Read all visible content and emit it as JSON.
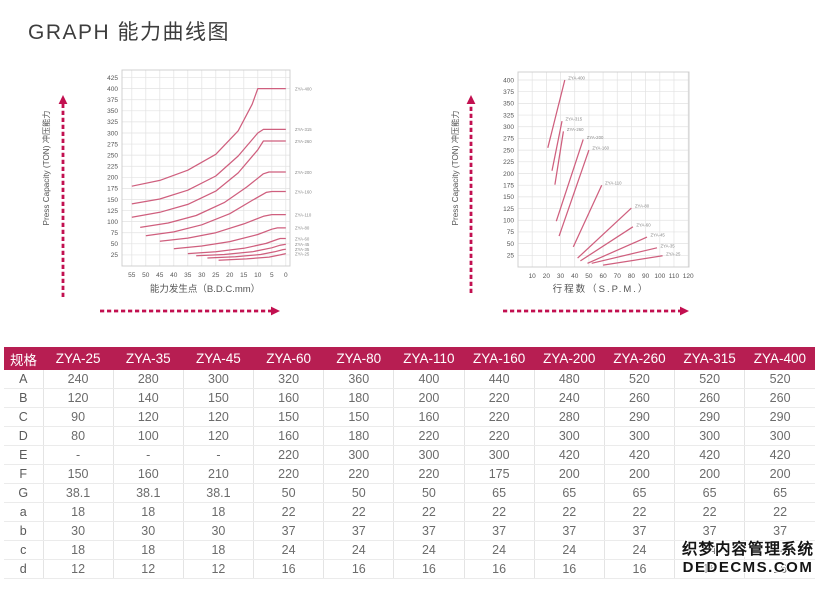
{
  "page": {
    "title": "GRAPH 能力曲线图"
  },
  "watermark": {
    "line1": "织梦内容管理系统",
    "line2": "DEDECMS.COM"
  },
  "colors": {
    "accent": "#b71e52",
    "curve": "#cf5f7e",
    "arrow": "#c21050",
    "grid": "#e2e2e2",
    "plot_border": "#cccccc",
    "tick_text": "#555555",
    "series_label": "#888888"
  },
  "chart_data": [
    {
      "type": "line",
      "ylabel": "Press Capacity (TON) 冲压能力",
      "xlabel": "能力发生点（B.D.C.mm）",
      "x_reversed": true,
      "xlim": [
        0,
        55
      ],
      "ylim": [
        0,
        440
      ],
      "xticks": [
        55,
        50,
        45,
        40,
        35,
        30,
        25,
        20,
        15,
        10,
        5,
        0
      ],
      "yticks": [
        425,
        400,
        375,
        350,
        325,
        300,
        275,
        250,
        225,
        200,
        175,
        150,
        125,
        100,
        75,
        50,
        25
      ],
      "grid": true,
      "legend_position": "right-of-curves",
      "series": [
        {
          "name": "ZYA-400",
          "points": [
            [
              55,
              180
            ],
            [
              45,
              193
            ],
            [
              35,
              216
            ],
            [
              25,
              252
            ],
            [
              17,
              305
            ],
            [
              12,
              365
            ],
            [
              10,
              400
            ],
            [
              0,
              400
            ]
          ]
        },
        {
          "name": "ZYA-315",
          "points": [
            [
              55,
              140
            ],
            [
              45,
              151
            ],
            [
              35,
              171
            ],
            [
              25,
              203
            ],
            [
              17,
              248
            ],
            [
              10,
              300
            ],
            [
              8,
              308
            ],
            [
              0,
              308
            ]
          ]
        },
        {
          "name": "ZYA-260",
          "points": [
            [
              55,
              110
            ],
            [
              45,
              121
            ],
            [
              35,
              139
            ],
            [
              25,
              169
            ],
            [
              17,
              210
            ],
            [
              10,
              262
            ],
            [
              8,
              282
            ],
            [
              0,
              282
            ]
          ]
        },
        {
          "name": "ZYA-200",
          "points": [
            [
              52,
              87
            ],
            [
              42,
              97
            ],
            [
              32,
              114
            ],
            [
              22,
              143
            ],
            [
              14,
              178
            ],
            [
              8,
              208
            ],
            [
              6,
              212
            ],
            [
              0,
              212
            ]
          ]
        },
        {
          "name": "ZYA-160",
          "points": [
            [
              50,
              68
            ],
            [
              40,
              77
            ],
            [
              30,
              93
            ],
            [
              20,
              118
            ],
            [
              12,
              148
            ],
            [
              7,
              166
            ],
            [
              5,
              168
            ],
            [
              0,
              168
            ]
          ]
        },
        {
          "name": "ZYA-110",
          "points": [
            [
              45,
              56
            ],
            [
              35,
              63
            ],
            [
              25,
              75
            ],
            [
              15,
              95
            ],
            [
              8,
              112
            ],
            [
              5,
              116
            ],
            [
              0,
              116
            ]
          ]
        },
        {
          "name": "ZYA-80",
          "points": [
            [
              40,
              39
            ],
            [
              30,
              45
            ],
            [
              20,
              55
            ],
            [
              10,
              71
            ],
            [
              5,
              83
            ],
            [
              3,
              86
            ],
            [
              0,
              86
            ]
          ]
        },
        {
          "name": "ZYA-60",
          "points": [
            [
              35,
              28
            ],
            [
              25,
              32
            ],
            [
              15,
              40
            ],
            [
              7,
              51
            ],
            [
              3,
              60
            ],
            [
              2,
              62
            ],
            [
              0,
              62
            ]
          ]
        },
        {
          "name": "ZYA-45",
          "points": [
            [
              32,
              23
            ],
            [
              22,
              26
            ],
            [
              12,
              32
            ],
            [
              5,
              41
            ],
            [
              2,
              47
            ],
            [
              0,
              49
            ]
          ]
        },
        {
          "name": "ZYA-35",
          "points": [
            [
              28,
              18
            ],
            [
              18,
              21
            ],
            [
              9,
              26
            ],
            [
              4,
              32
            ],
            [
              1,
              37
            ],
            [
              0,
              38
            ]
          ]
        },
        {
          "name": "ZYA-25",
          "points": [
            [
              24,
              13
            ],
            [
              14,
              16
            ],
            [
              6,
              20
            ],
            [
              2,
              25
            ],
            [
              0,
              28
            ]
          ]
        }
      ]
    },
    {
      "type": "line",
      "ylabel": "Press Capacity (TON) 冲压能力",
      "xlabel": "行程数（S.P.M.）",
      "x_reversed": false,
      "xlim": [
        0,
        120
      ],
      "ylim": [
        0,
        415
      ],
      "xticks": [
        10,
        20,
        30,
        40,
        50,
        60,
        70,
        80,
        90,
        100,
        110,
        120
      ],
      "yticks": [
        400,
        375,
        350,
        325,
        300,
        275,
        250,
        225,
        200,
        175,
        150,
        125,
        100,
        75,
        50,
        25
      ],
      "grid": true,
      "legend_position": "at-line-end",
      "series": [
        {
          "name": "ZYA-400",
          "points": [
            [
              21,
              255
            ],
            [
              33,
              400
            ]
          ]
        },
        {
          "name": "ZYA-315",
          "points": [
            [
              24,
              206
            ],
            [
              31,
              312
            ]
          ]
        },
        {
          "name": "ZYA-260",
          "points": [
            [
              26,
              176
            ],
            [
              32,
              290
            ]
          ]
        },
        {
          "name": "ZYA-200",
          "points": [
            [
              27,
              98
            ],
            [
              46,
              273
            ]
          ]
        },
        {
          "name": "ZYA-160",
          "points": [
            [
              29,
              66
            ],
            [
              50,
              250
            ]
          ]
        },
        {
          "name": "ZYA-110",
          "points": [
            [
              39,
              43
            ],
            [
              59,
              175
            ]
          ]
        },
        {
          "name": "ZYA-80",
          "points": [
            [
              42,
              19
            ],
            [
              80,
              126
            ]
          ]
        },
        {
          "name": "ZYA-60",
          "points": [
            [
              44,
              13
            ],
            [
              81,
              86
            ]
          ]
        },
        {
          "name": "ZYA-45",
          "points": [
            [
              49,
              8
            ],
            [
              91,
              64
            ]
          ]
        },
        {
          "name": "ZYA-35",
          "points": [
            [
              52,
              8
            ],
            [
              98,
              41
            ]
          ]
        },
        {
          "name": "ZYA-25",
          "points": [
            [
              60,
              4
            ],
            [
              102,
              24
            ]
          ]
        }
      ]
    }
  ],
  "table": {
    "corner": "规格",
    "columns": [
      "ZYA-25",
      "ZYA-35",
      "ZYA-45",
      "ZYA-60",
      "ZYA-80",
      "ZYA-110",
      "ZYA-160",
      "ZYA-200",
      "ZYA-260",
      "ZYA-315",
      "ZYA-400"
    ],
    "rows": [
      {
        "label": "A",
        "values": [
          "240",
          "280",
          "300",
          "320",
          "360",
          "400",
          "440",
          "480",
          "520",
          "520",
          "520"
        ]
      },
      {
        "label": "B",
        "values": [
          "120",
          "140",
          "150",
          "160",
          "180",
          "200",
          "220",
          "240",
          "260",
          "260",
          "260"
        ]
      },
      {
        "label": "C",
        "values": [
          "90",
          "120",
          "120",
          "150",
          "150",
          "160",
          "220",
          "280",
          "290",
          "290",
          "290"
        ]
      },
      {
        "label": "D",
        "values": [
          "80",
          "100",
          "120",
          "160",
          "180",
          "220",
          "220",
          "300",
          "300",
          "300",
          "300"
        ]
      },
      {
        "label": "E",
        "values": [
          "-",
          "-",
          "-",
          "220",
          "300",
          "300",
          "300",
          "420",
          "420",
          "420",
          "420"
        ]
      },
      {
        "label": "F",
        "values": [
          "150",
          "160",
          "210",
          "220",
          "220",
          "220",
          "175",
          "200",
          "200",
          "200",
          "200"
        ]
      },
      {
        "label": "G",
        "values": [
          "38.1",
          "38.1",
          "38.1",
          "50",
          "50",
          "50",
          "65",
          "65",
          "65",
          "65",
          "65"
        ]
      },
      {
        "label": "a",
        "values": [
          "18",
          "18",
          "18",
          "22",
          "22",
          "22",
          "22",
          "22",
          "22",
          "22",
          "22"
        ]
      },
      {
        "label": "b",
        "values": [
          "30",
          "30",
          "30",
          "37",
          "37",
          "37",
          "37",
          "37",
          "37",
          "37",
          "37"
        ]
      },
      {
        "label": "c",
        "values": [
          "18",
          "18",
          "18",
          "24",
          "24",
          "24",
          "24",
          "24",
          "24",
          "24",
          "24"
        ]
      },
      {
        "label": "d",
        "values": [
          "12",
          "12",
          "12",
          "16",
          "16",
          "16",
          "16",
          "16",
          "16",
          "16",
          "16"
        ]
      }
    ]
  }
}
